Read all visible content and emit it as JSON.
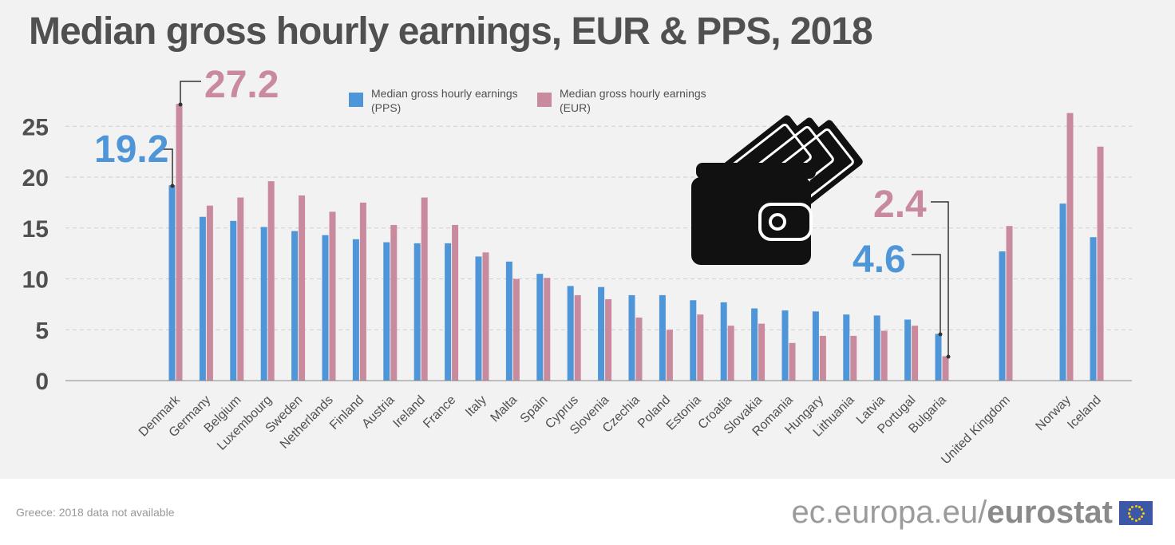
{
  "title": "Median gross hourly earnings, EUR & PPS, 2018",
  "legend": {
    "pps": {
      "label": "Median gross hourly earnings (PPS)",
      "color": "#4f96d8"
    },
    "eur": {
      "label": "Median gross hourly earnings (EUR)",
      "color": "#c98a9e"
    }
  },
  "annotations": {
    "max_eur": "27.2",
    "max_pps": "19.2",
    "min_eur": "2.4",
    "min_pps": "4.6"
  },
  "footer": {
    "note": "Greece: 2018 data not available",
    "brand_prefix": "ec.europa.eu/",
    "brand_name": "eurostat"
  },
  "icons": [
    "wallet-icon",
    "eu-flag-icon"
  ],
  "chart_data": {
    "type": "bar",
    "title": "Median gross hourly earnings, EUR & PPS, 2018",
    "xlabel": "",
    "ylabel": "",
    "ylim": [
      0,
      27.5
    ],
    "yticks": [
      0,
      5,
      10,
      15,
      20,
      25
    ],
    "grid": true,
    "legend_position": "top-center",
    "categories": [
      "Denmark",
      "Germany",
      "Belgium",
      "Luxembourg",
      "Sweden",
      "Netherlands",
      "Finland",
      "Austria",
      "Ireland",
      "France",
      "Italy",
      "Malta",
      "Spain",
      "Cyprus",
      "Slovenia",
      "Czechia",
      "Poland",
      "Estonia",
      "Croatia",
      "Slovakia",
      "Romania",
      "Hungary",
      "Lithuania",
      "Latvia",
      "Portugal",
      "Bulgaria",
      "United Kingdom",
      "Norway",
      "Iceland"
    ],
    "series": [
      {
        "name": "Median gross hourly earnings (PPS)",
        "color": "#4f96d8",
        "values": [
          19.2,
          16.1,
          15.7,
          15.1,
          14.7,
          14.3,
          13.9,
          13.6,
          13.5,
          13.5,
          12.2,
          11.7,
          10.5,
          9.3,
          9.2,
          8.4,
          8.4,
          7.9,
          7.7,
          7.1,
          6.9,
          6.8,
          6.5,
          6.4,
          6.0,
          4.6,
          12.7,
          17.4,
          14.1
        ]
      },
      {
        "name": "Median gross hourly earnings (EUR)",
        "color": "#c98a9e",
        "values": [
          27.2,
          17.2,
          18.0,
          19.6,
          18.2,
          16.6,
          17.5,
          15.3,
          18.0,
          15.3,
          12.6,
          10.0,
          10.1,
          8.4,
          8.0,
          6.2,
          5.0,
          6.5,
          5.4,
          5.6,
          3.7,
          4.4,
          4.4,
          4.9,
          5.4,
          2.4,
          15.2,
          26.3,
          23.0
        ]
      }
    ]
  }
}
